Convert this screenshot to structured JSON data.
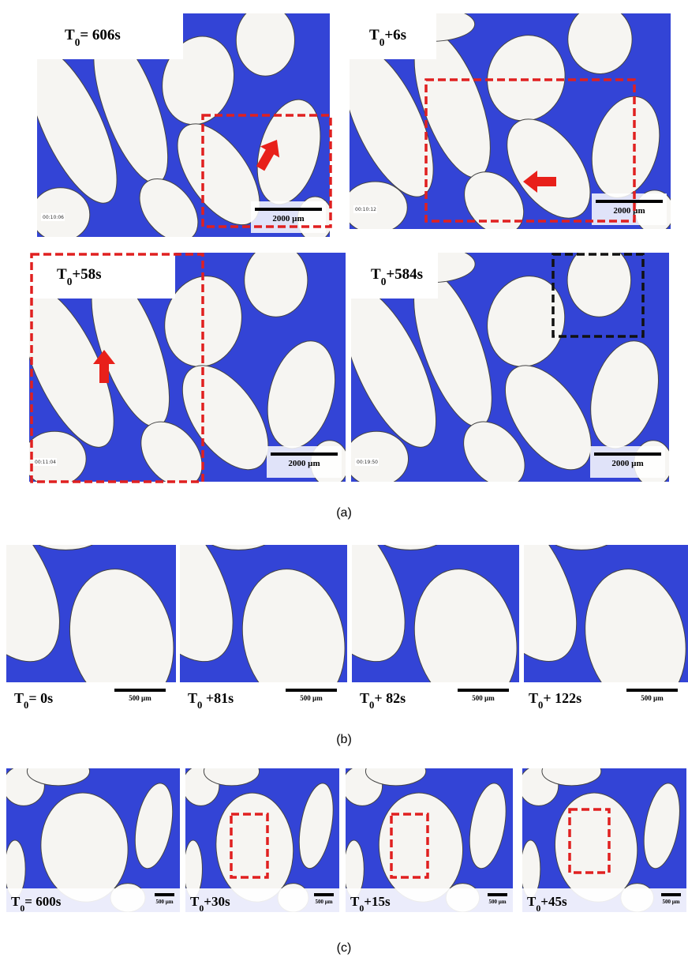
{
  "panels_a": [
    {
      "label": {
        "base": "T",
        "sub": "0",
        "rest": "= 606s"
      },
      "timestamp": "00:10:06",
      "scale": "2000 µm"
    },
    {
      "label": {
        "base": "T",
        "sub": "0",
        "rest": "+6s"
      },
      "timestamp": "00:10:12",
      "scale": "2000 µm"
    },
    {
      "label": {
        "base": "T",
        "sub": "0",
        "rest": "+58s"
      },
      "timestamp": "00:11:04",
      "scale": "2000 µm"
    },
    {
      "label": {
        "base": "T",
        "sub": "0",
        "rest": "+584s"
      },
      "timestamp": "00:19:50",
      "scale": "2000 µm"
    }
  ],
  "panels_b": [
    {
      "label": {
        "base": "T",
        "sub": "0",
        "rest": "= 0s"
      },
      "scale": "500 µm"
    },
    {
      "label": {
        "base": "T",
        "sub": "0",
        "rest": " +81s"
      },
      "scale": "500 µm"
    },
    {
      "label": {
        "base": "T",
        "sub": "0",
        "rest": "+ 82s"
      },
      "scale": "500 µm"
    },
    {
      "label": {
        "base": "T",
        "sub": "0",
        "rest": "+ 122s"
      },
      "scale": "500 µm"
    }
  ],
  "panels_c": [
    {
      "label": {
        "base": "T",
        "sub": "0",
        "rest": "= 600s"
      },
      "scale": "500 µm"
    },
    {
      "label": {
        "base": "T",
        "sub": "0",
        "rest": "+30s"
      },
      "scale": "500 µm"
    },
    {
      "label": {
        "base": "T",
        "sub": "0",
        "rest": "+15s"
      },
      "scale": "500 µm"
    },
    {
      "label": {
        "base": "T",
        "sub": "0",
        "rest": "+45s"
      },
      "scale": "500 µm"
    }
  ],
  "captions": {
    "a": "(a)",
    "b": "(b)",
    "c": "(c)"
  }
}
